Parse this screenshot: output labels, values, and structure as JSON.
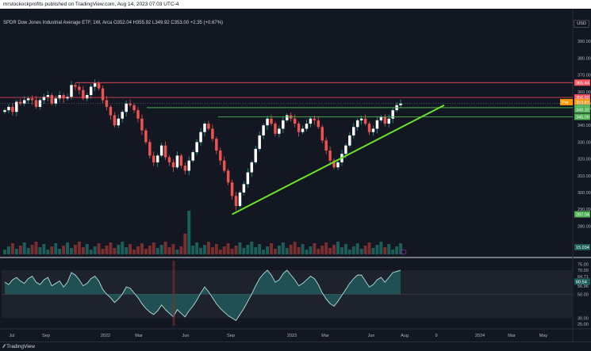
{
  "header": {
    "publisher_text": "mrstockockprofits published on TradingView.com, Aug 14, 2023 07:03 UTC-4"
  },
  "legend": {
    "text": "SPDR Dow Jones Industrial Average ETF, 1W, Arca  O352.04  H355.92  L349.92  C353.00  +2.35 (+0.67%)"
  },
  "currency_button": "USD",
  "brand": "TradingView",
  "brand_icon": "tradingview-logo-icon",
  "colors": {
    "up": "#26a69a",
    "down": "#ef5350",
    "support": "#4caf50",
    "trendline": "#6ae32a",
    "resistance": "#f7525f",
    "price_tag": "#ff9800",
    "volume_up": "#1b5e5a",
    "volume_down": "#7a2e2e"
  },
  "chart_data": [
    {
      "type": "candlestick",
      "title": "SPDR Dow Jones Industrial Average ETF, 1W, Arca",
      "ylim": [
        275,
        400
      ],
      "price_axis_ticks": [
        "390.00",
        "380.00",
        "370.00",
        "360.00",
        "350.00",
        "340.00",
        "330.00",
        "320.00",
        "310.00",
        "300.00",
        "290.00",
        "280.00"
      ],
      "time_axis_labels": [
        "Jul",
        "Sep",
        "2022",
        "Mar",
        "Jun",
        "Sep",
        "2023",
        "Mar",
        "Jun",
        "Aug",
        "9",
        "2024",
        "Mar",
        "May"
      ],
      "closes": [
        349,
        351,
        348,
        354,
        353,
        355,
        356,
        355,
        351,
        355,
        357,
        358,
        353,
        356,
        358,
        356,
        357,
        364,
        363,
        361,
        356,
        358,
        363,
        365,
        362,
        355,
        351,
        346,
        340,
        344,
        348,
        353,
        352,
        349,
        344,
        337,
        330,
        322,
        318,
        322,
        328,
        321,
        318,
        315,
        322,
        316,
        313,
        319,
        324,
        330,
        336,
        341,
        338,
        332,
        325,
        319,
        313,
        306,
        298,
        292,
        300,
        305,
        312,
        318,
        326,
        334,
        340,
        344,
        341,
        335,
        338,
        343,
        346,
        344,
        341,
        336,
        338,
        341,
        344,
        343,
        339,
        331,
        325,
        319,
        315,
        318,
        323,
        328,
        334,
        339,
        343,
        344,
        341,
        336,
        338,
        343,
        345,
        341,
        344,
        349,
        352,
        353
      ],
      "candle_count": 102,
      "last_price": "353.00",
      "price_tags": [
        {
          "label": "365.44",
          "kind": "resistance"
        },
        {
          "label": "356.60",
          "kind": "resistance"
        },
        {
          "label": "353.81",
          "kind": "price"
        },
        {
          "label": "350.53",
          "kind": "support"
        },
        {
          "label": "349.32",
          "kind": "support"
        },
        {
          "label": "345.09",
          "kind": "support"
        },
        {
          "label": "287.04",
          "kind": "support"
        },
        {
          "label": "15.034",
          "kind": "volume"
        }
      ],
      "price_tag_prefix": "Pre",
      "current_price_label": "353.00"
    },
    {
      "type": "area",
      "title": "oscillator",
      "ylim": [
        25,
        78
      ],
      "axis_ticks": [
        "75.00",
        "70.00",
        "64.71",
        "60.54",
        "56.96",
        "50.00",
        "30.00",
        "25.00"
      ],
      "values": [
        60,
        58,
        62,
        64,
        61,
        59,
        63,
        65,
        60,
        58,
        62,
        64,
        57,
        59,
        61,
        56,
        60,
        68,
        66,
        62,
        57,
        59,
        63,
        65,
        61,
        54,
        50,
        47,
        43,
        46,
        50,
        56,
        55,
        51,
        47,
        42,
        38,
        35,
        33,
        36,
        41,
        37,
        34,
        31,
        37,
        34,
        31,
        36,
        40,
        45,
        51,
        56,
        52,
        47,
        42,
        38,
        35,
        32,
        30,
        28,
        33,
        38,
        44,
        50,
        57,
        63,
        67,
        70,
        66,
        60,
        62,
        67,
        70,
        66,
        62,
        57,
        59,
        62,
        65,
        63,
        58,
        51,
        46,
        42,
        40,
        44,
        49,
        54,
        59,
        63,
        66,
        66,
        61,
        56,
        58,
        62,
        64,
        60,
        64,
        68,
        69,
        70
      ]
    }
  ]
}
